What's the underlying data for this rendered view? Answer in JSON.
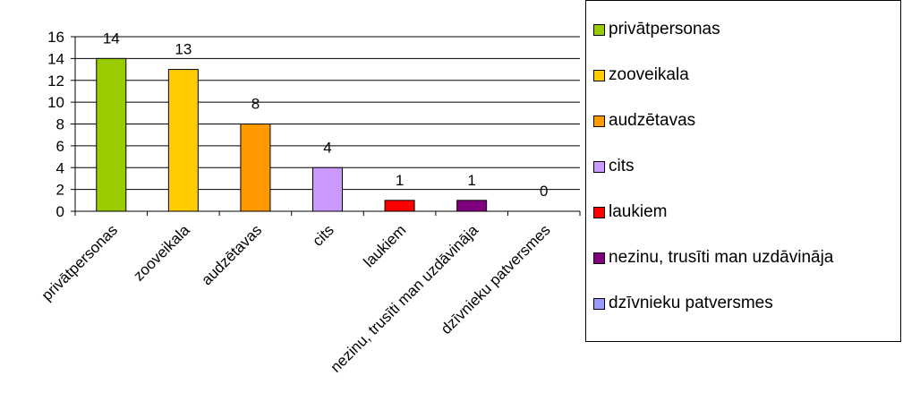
{
  "chart_data": {
    "type": "bar",
    "categories": [
      "privātpersonas",
      "zooveikala",
      "audzētavas",
      "cits",
      "laukiem",
      "nezinu, trusīti man uzdāvināja",
      "dzīvnieku patversmes"
    ],
    "values": [
      14,
      13,
      8,
      4,
      1,
      1,
      0
    ],
    "colors": [
      "#99cc00",
      "#ffcc00",
      "#ff9900",
      "#cc99ff",
      "#ff0000",
      "#800080",
      "#9999ff"
    ],
    "ylim": [
      0,
      16
    ],
    "yticks": [
      0,
      2,
      4,
      6,
      8,
      10,
      12,
      14,
      16
    ],
    "data_labels": [
      "14",
      "13",
      "8",
      "4",
      "1",
      "1",
      "0"
    ],
    "grid": true,
    "legend_position": "right",
    "legend": [
      "privātpersonas",
      "zooveikala",
      "audzētavas",
      "cits",
      "laukiem",
      "nezinu, trusīti man uzdāvināja",
      "dzīvnieku patversmes"
    ]
  }
}
